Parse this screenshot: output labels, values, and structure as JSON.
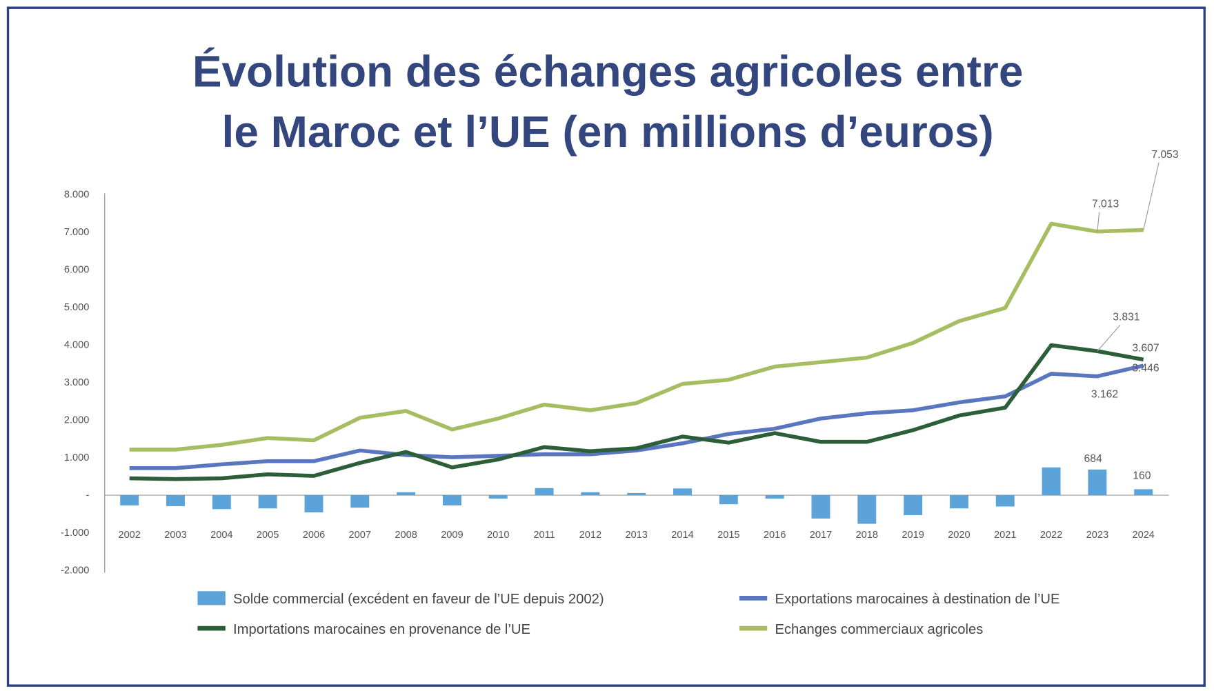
{
  "chart_data": {
    "type": "bar+line",
    "title_lines": [
      "Évolution des échanges agricoles entre",
      "le Maroc et l’UE (en millions d’euros)"
    ],
    "xlabel": "",
    "ylabel": "",
    "ylim": [
      -2000,
      8000
    ],
    "yticks": [
      8000,
      7000,
      6000,
      5000,
      4000,
      3000,
      2000,
      1000,
      0,
      -1000,
      -2000
    ],
    "ytick_labels": [
      "8.000",
      "7.000",
      "6.000",
      "5.000",
      "4.000",
      "3.000",
      "2.000",
      "1.000",
      "-",
      "-1.000",
      "-2.000"
    ],
    "grid": false,
    "legend_placement": "bottom",
    "categories": [
      "2002",
      "2003",
      "2004",
      "2005",
      "2006",
      "2007",
      "2008",
      "2009",
      "2010",
      "2011",
      "2012",
      "2013",
      "2014",
      "2015",
      "2016",
      "2017",
      "2018",
      "2019",
      "2020",
      "2021",
      "2022",
      "2023",
      "2024"
    ],
    "series": [
      {
        "name": "Solde commercial (excédent en faveur de l’UE depuis 2002)",
        "kind": "bar",
        "color": "#5ba3d9",
        "values": [
          -270,
          -290,
          -370,
          -350,
          -455,
          -330,
          80,
          -270,
          -90,
          190,
          80,
          60,
          180,
          -240,
          -90,
          -620,
          -760,
          -530,
          -350,
          -300,
          740,
          684,
          160
        ]
      },
      {
        "name": "Exportations marocaines à destination de l’UE",
        "kind": "line",
        "color": "#5a76bf",
        "values": [
          720,
          720,
          820,
          905,
          905,
          1190,
          1070,
          1010,
          1050,
          1090,
          1090,
          1190,
          1380,
          1630,
          1770,
          2040,
          2180,
          2260,
          2470,
          2630,
          3230,
          3162,
          3446
        ]
      },
      {
        "name": "Importations marocaines en provenance de l’UE",
        "kind": "line",
        "color": "#2d5e3a",
        "values": [
          450,
          430,
          450,
          555,
          515,
          860,
          1150,
          740,
          950,
          1280,
          1170,
          1250,
          1560,
          1400,
          1650,
          1420,
          1420,
          1730,
          2120,
          2330,
          3990,
          3831,
          3607
        ]
      },
      {
        "name": "Echanges commerciaux agricoles",
        "kind": "line",
        "color": "#a7bd62",
        "values": [
          1215,
          1215,
          1340,
          1520,
          1460,
          2060,
          2240,
          1750,
          2040,
          2410,
          2260,
          2450,
          2960,
          3070,
          3420,
          3540,
          3660,
          4050,
          4630,
          4980,
          7220,
          7013,
          7053
        ]
      }
    ],
    "annotations": [
      {
        "text": "7.053",
        "series": 3,
        "year": "2024",
        "leader": true
      },
      {
        "text": "7.013",
        "series": 3,
        "year": "2023",
        "leader": true
      },
      {
        "text": "3.831",
        "series": 2,
        "year": "2023",
        "leader": true
      },
      {
        "text": "3.607",
        "series": 2,
        "year": "2024",
        "leader": false
      },
      {
        "text": "3.446",
        "series": 1,
        "year": "2024",
        "leader": false
      },
      {
        "text": "3.162",
        "series": 1,
        "year": "2023",
        "leader": false
      },
      {
        "text": "684",
        "series": 0,
        "year": "2023",
        "leader": false
      },
      {
        "text": "160",
        "series": 0,
        "year": "2024",
        "leader": false
      }
    ],
    "frame_color": "#2e3f7f"
  }
}
